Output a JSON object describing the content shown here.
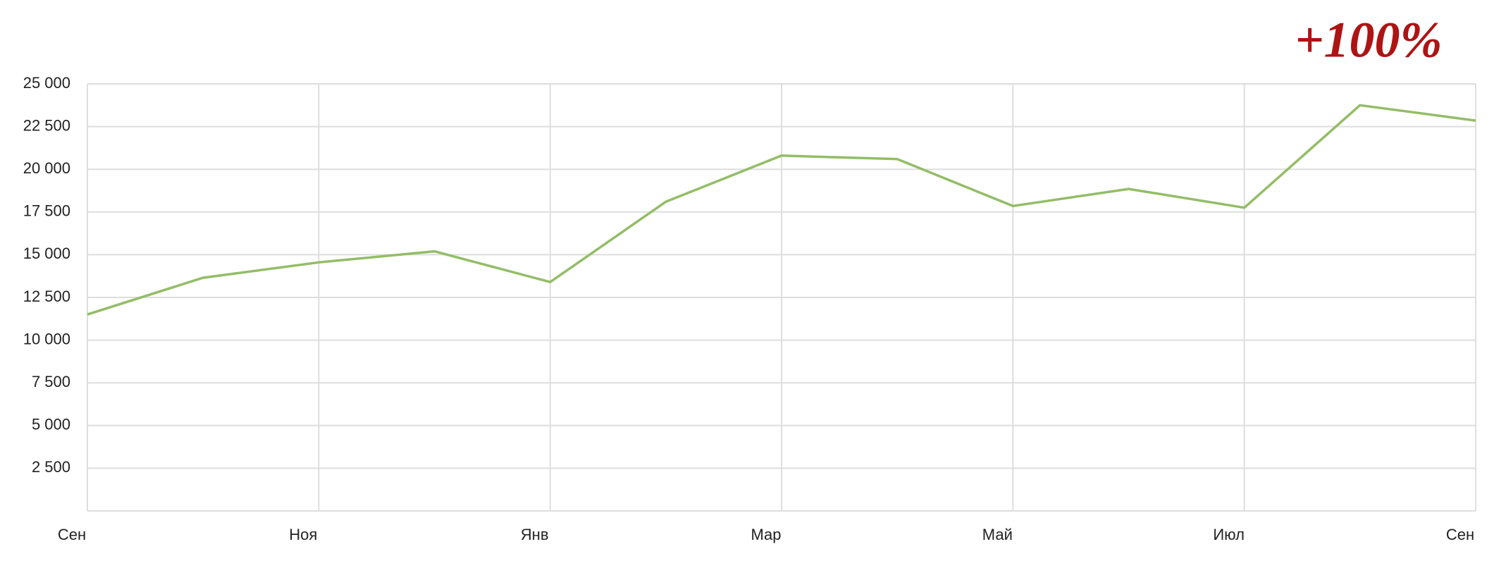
{
  "chart_data": {
    "type": "line",
    "annotation": "+100%",
    "categories": [
      "Сен",
      null,
      "Ноя",
      null,
      "Янв",
      null,
      "Мар",
      null,
      "Май",
      null,
      "Июл",
      null,
      "Сен"
    ],
    "values": [
      11500,
      13650,
      14550,
      15200,
      13400,
      18100,
      20800,
      20600,
      17850,
      18850,
      17750,
      23750,
      22850
    ],
    "color": "#93bd67",
    "ylim": [
      0,
      25000
    ],
    "yticks": [
      {
        "value": 2500,
        "label": "2 500"
      },
      {
        "value": 5000,
        "label": "5 000"
      },
      {
        "value": 7500,
        "label": "7 500"
      },
      {
        "value": 10000,
        "label": "10 000"
      },
      {
        "value": 12500,
        "label": "12 500"
      },
      {
        "value": 15000,
        "label": "15 000"
      },
      {
        "value": 17500,
        "label": "17 500"
      },
      {
        "value": 20000,
        "label": "20 000"
      },
      {
        "value": 22500,
        "label": "22 500"
      },
      {
        "value": 25000,
        "label": "25 000"
      }
    ],
    "grid": true
  }
}
